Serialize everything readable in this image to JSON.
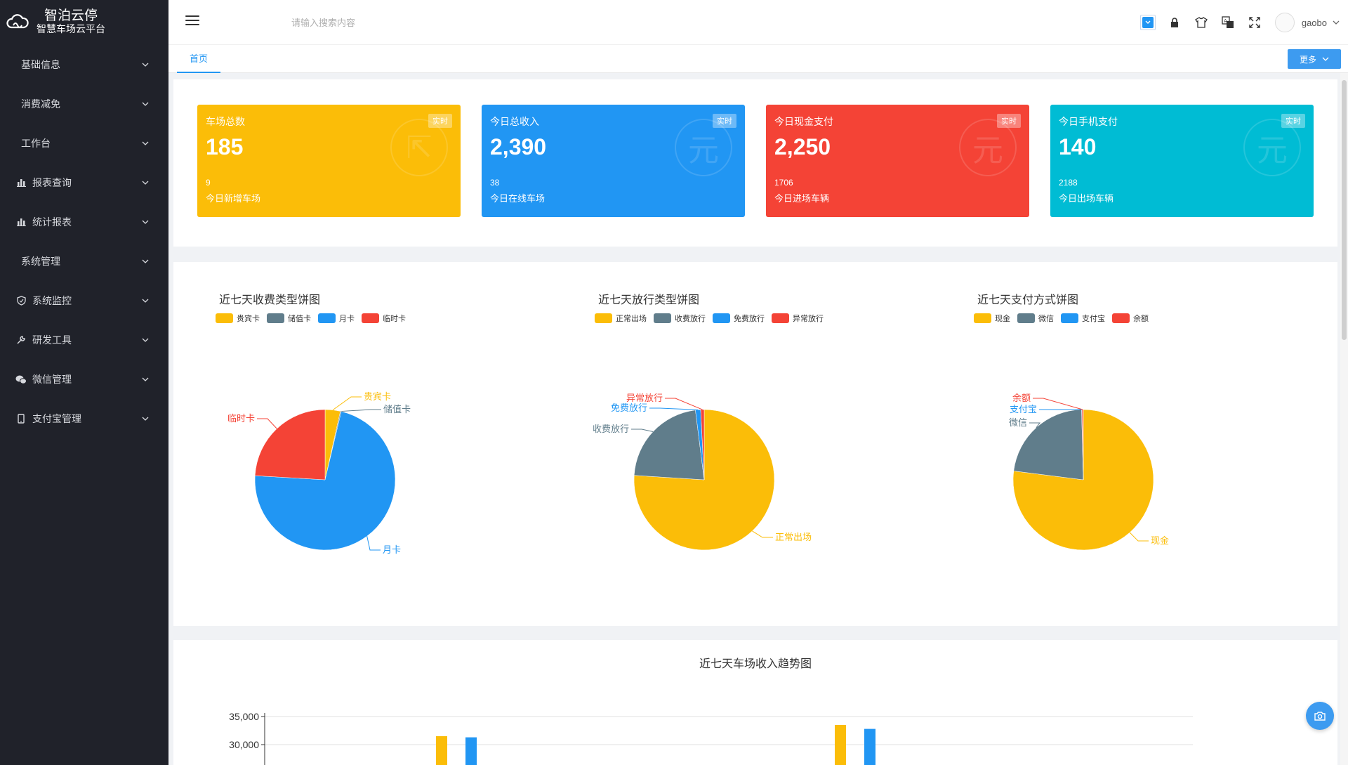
{
  "brand": {
    "name": "智泊云停",
    "subtitle": "智慧车场云平台"
  },
  "sidebar": {
    "items": [
      {
        "label": "基础信息",
        "icon": ""
      },
      {
        "label": "消费减免",
        "icon": ""
      },
      {
        "label": "工作台",
        "icon": ""
      },
      {
        "label": "报表查询",
        "icon": "bar-chart-icon"
      },
      {
        "label": "统计报表",
        "icon": "bar-chart-icon"
      },
      {
        "label": "系统管理",
        "icon": ""
      },
      {
        "label": "系统监控",
        "icon": "shield-icon"
      },
      {
        "label": "研发工具",
        "icon": "wrench-icon"
      },
      {
        "label": "微信管理",
        "icon": "wechat-icon"
      },
      {
        "label": "支付宝管理",
        "icon": "mobile-icon"
      }
    ]
  },
  "header": {
    "search_placeholder": "请输入搜索内容",
    "username": "gaobo"
  },
  "tabs": {
    "home": "首页",
    "more": "更多"
  },
  "stats": [
    {
      "title": "车场总数",
      "badge": "实时",
      "value": "185",
      "sub_value": "9",
      "sub_label": "今日新增车场",
      "color": "#fbbd08",
      "watermark": "⇱"
    },
    {
      "title": "今日总收入",
      "badge": "实时",
      "value": "2,390",
      "sub_value": "38",
      "sub_label": "今日在线车场",
      "color": "#2196f3",
      "watermark": "元"
    },
    {
      "title": "今日现金支付",
      "badge": "实时",
      "value": "2,250",
      "sub_value": "1706",
      "sub_label": "今日进场车辆",
      "color": "#f44336",
      "watermark": "元"
    },
    {
      "title": "今日手机支付",
      "badge": "实时",
      "value": "140",
      "sub_value": "2188",
      "sub_label": "今日出场车辆",
      "color": "#00bcd4",
      "watermark": "元"
    }
  ],
  "colors": {
    "yellow": "#fbbd08",
    "gray": "#607d8b",
    "blue": "#2196f3",
    "red": "#f44336"
  },
  "chart_data": [
    {
      "type": "pie",
      "title": "近七天收费类型饼图",
      "legend": [
        "贵宾卡",
        "储值卡",
        "月卡",
        "临时卡"
      ],
      "values": [
        3.5,
        0.2,
        72,
        24
      ],
      "colors": [
        "#fbbd08",
        "#607d8b",
        "#2196f3",
        "#f44336"
      ]
    },
    {
      "type": "pie",
      "title": "近七天放行类型饼图",
      "legend": [
        "正常出场",
        "收费放行",
        "免费放行",
        "异常放行"
      ],
      "values": [
        76,
        22,
        1.2,
        0.8
      ],
      "colors": [
        "#fbbd08",
        "#607d8b",
        "#2196f3",
        "#f44336"
      ]
    },
    {
      "type": "pie",
      "title": "近七天支付方式饼图",
      "legend": [
        "现金",
        "微信",
        "支付宝",
        "余额"
      ],
      "values": [
        77,
        22.6,
        0.1,
        0.3
      ],
      "colors": [
        "#fbbd08",
        "#607d8b",
        "#2196f3",
        "#f44336"
      ]
    },
    {
      "type": "bar",
      "title": "近七天车场收入趋势图",
      "y_ticks": [
        "35,000",
        "30,000"
      ],
      "ylim": [
        0,
        35000
      ],
      "series": [
        {
          "values": [
            31500,
            33500
          ],
          "color": "#fbbd08"
        },
        {
          "values": [
            31300,
            32800
          ],
          "color": "#2196f3"
        }
      ]
    }
  ]
}
